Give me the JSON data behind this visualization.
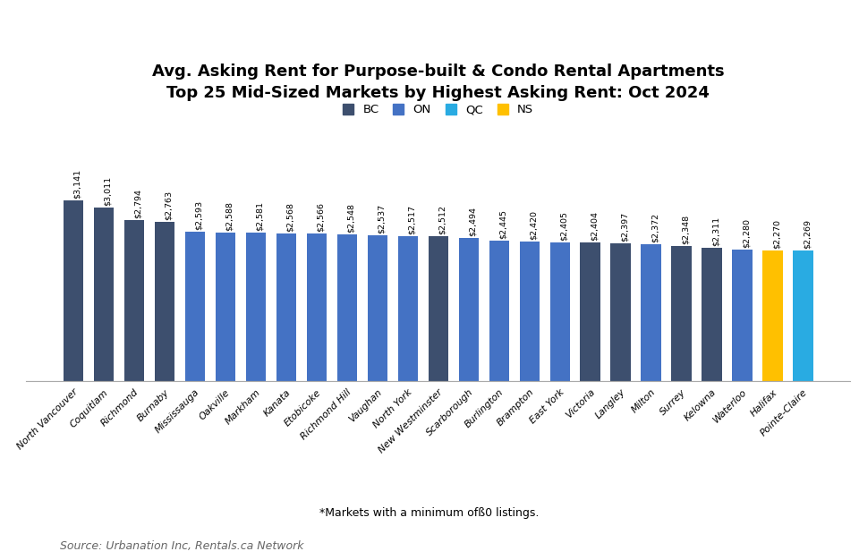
{
  "title": "Avg. Asking Rent for Purpose-built & Condo Rental Apartments\nTop 25 Mid-Sized Markets by Highest Asking Rent: Oct 2024",
  "categories": [
    "North Vancouver",
    "Coquitlam",
    "Richmond",
    "Burnaby",
    "Mississauga",
    "Oakville",
    "Markham",
    "Kanata",
    "Etobicoke",
    "Richmond Hill",
    "Vaughan",
    "North York",
    "New Westminster",
    "Scarborough",
    "Burlington",
    "Brampton",
    "East York",
    "Victoria",
    "Langley",
    "Milton",
    "Surrey",
    "Kelowna",
    "Waterloo",
    "Halifax",
    "Pointe-Claire"
  ],
  "values": [
    3141,
    3011,
    2794,
    2763,
    2593,
    2588,
    2581,
    2568,
    2566,
    2548,
    2537,
    2517,
    2512,
    2494,
    2445,
    2420,
    2405,
    2404,
    2397,
    2372,
    2348,
    2311,
    2280,
    2270,
    2269
  ],
  "provinces": [
    "BC",
    "BC",
    "BC",
    "BC",
    "ON",
    "ON",
    "ON",
    "ON",
    "ON",
    "ON",
    "ON",
    "ON",
    "BC",
    "ON",
    "ON",
    "ON",
    "ON",
    "BC",
    "BC",
    "ON",
    "BC",
    "BC",
    "ON",
    "NS",
    "QC"
  ],
  "colors": {
    "BC": "#3d4f6e",
    "ON": "#4472c4",
    "QC": "#29abe2",
    "NS": "#ffc000"
  },
  "legend_labels": [
    "BC",
    "ON",
    "QC",
    "NS"
  ],
  "footnote": "*Markets with a minimum ofß0 listings.",
  "source": "Source: Urbanation Inc, Rentals.ca Network",
  "background_color": "#ffffff",
  "ylim": [
    0,
    3900
  ]
}
